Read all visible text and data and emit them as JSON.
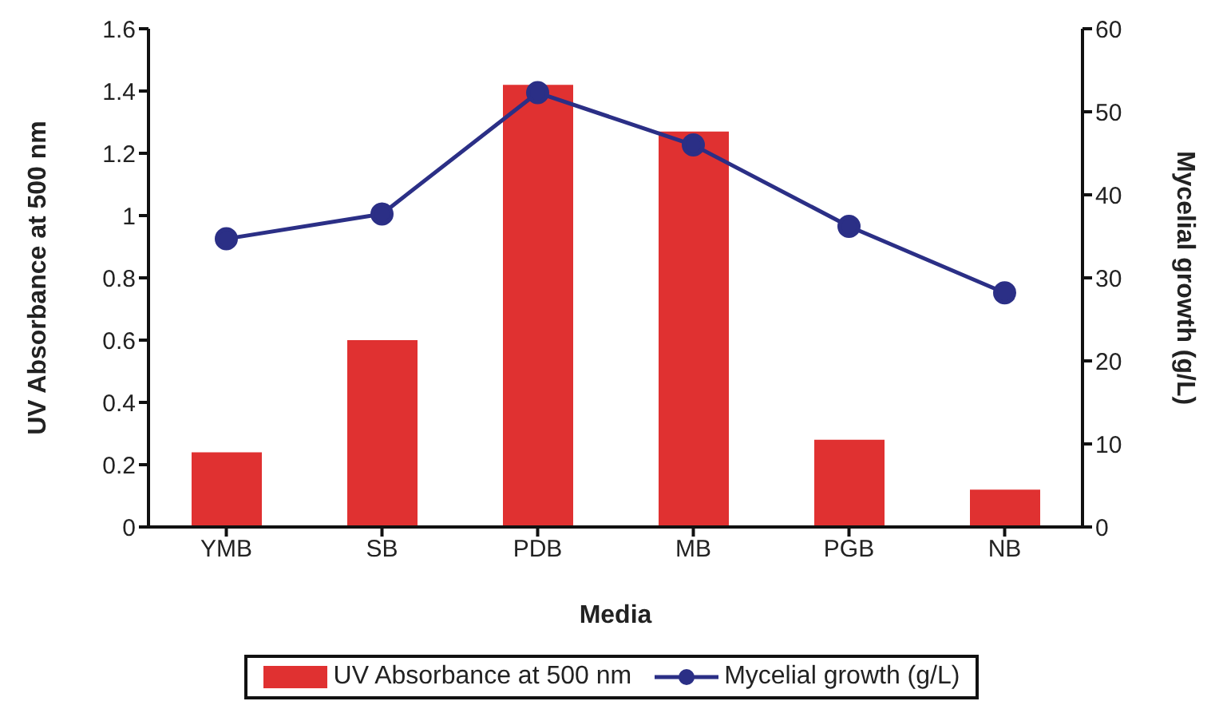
{
  "chart_data": {
    "type": "bar",
    "xlabel": "Media",
    "ylabel": "UV Absorbance  at 500 nm",
    "y2label": "Mycelial growth  (g/L)",
    "categories": [
      "YMB",
      "SB",
      "PDB",
      "MB",
      "PGB",
      "NB"
    ],
    "series": [
      {
        "name": "UV Absorbance at 500 nm",
        "color": "#e03131",
        "values": [
          0.24,
          0.6,
          1.42,
          1.27,
          0.28,
          0.12
        ]
      },
      {
        "name": "Mycelial growth (g/L)",
        "type": "line",
        "axis": "y2",
        "color": "#2b2f86",
        "values": [
          34.7,
          37.7,
          52.3,
          46,
          36.2,
          28.2
        ]
      }
    ],
    "ylim": [
      0,
      1.6
    ],
    "yticks": [
      0,
      0.2,
      0.4,
      0.6,
      0.8,
      1,
      1.2,
      1.4,
      1.6
    ],
    "y2lim": [
      0,
      60
    ],
    "y2ticks": [
      0,
      10,
      20,
      30,
      40,
      50,
      60
    ],
    "grid": false,
    "legend": "bottom",
    "marker": "circle"
  }
}
